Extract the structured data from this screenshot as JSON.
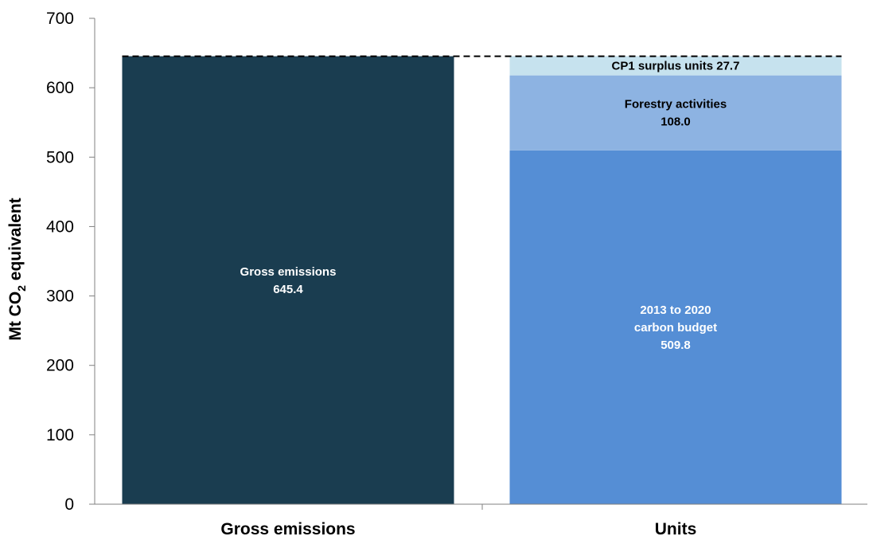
{
  "chart_data": {
    "type": "bar",
    "stacked": true,
    "categories": [
      "Gross emissions",
      "Units"
    ],
    "ylabel": {
      "main": "Mt CO",
      "subscript": "2",
      "rest": " equivalent"
    },
    "ylim": [
      0,
      700
    ],
    "yticks": [
      0,
      100,
      200,
      300,
      400,
      500,
      600,
      700
    ],
    "grid": false,
    "legend": "none",
    "reference_line": {
      "value": 645.4,
      "style": "dashed"
    },
    "bars": [
      {
        "category": "Gross emissions",
        "segments": [
          {
            "value": 645.4,
            "color": "#1a3d50",
            "label_color": "#ffffff",
            "label_lines": [
              "Gross emissions",
              "645.4"
            ]
          }
        ]
      },
      {
        "category": "Units",
        "segments": [
          {
            "value": 509.8,
            "color": "#558ed5",
            "label_color": "#ffffff",
            "label_lines": [
              "2013 to 2020",
              "carbon budget",
              "509.8"
            ]
          },
          {
            "value": 108.0,
            "color": "#8db3e2",
            "label_color": "#000000",
            "label_lines": [
              "Forestry activities",
              "108.0"
            ]
          },
          {
            "value": 27.7,
            "color": "#c6e2ee",
            "label_color": "#000000",
            "label_lines": [
              "CP1 surplus units 27.7"
            ]
          }
        ]
      }
    ]
  }
}
